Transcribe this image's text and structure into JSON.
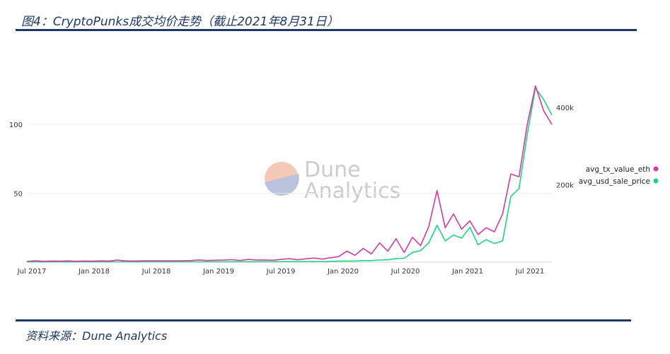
{
  "report": {
    "title": "图4：CryptoPunks成交均价走势（截止2021年8月31日）",
    "source": "资料来源：Dune Analytics"
  },
  "watermark": {
    "line1": "Dune",
    "line2": "Analytics"
  },
  "colors": {
    "eth": "#d63aa2",
    "usd": "#1ed680",
    "accent": "#1f3864"
  },
  "chart_data": {
    "type": "line",
    "x": [
      "2017-06",
      "2017-07",
      "2017-08",
      "2017-09",
      "2017-10",
      "2017-11",
      "2017-12",
      "2018-01",
      "2018-02",
      "2018-03",
      "2018-04",
      "2018-05",
      "2018-06",
      "2018-07",
      "2018-08",
      "2018-09",
      "2018-10",
      "2018-11",
      "2018-12",
      "2019-01",
      "2019-02",
      "2019-03",
      "2019-04",
      "2019-05",
      "2019-06",
      "2019-07",
      "2019-08",
      "2019-09",
      "2019-10",
      "2019-11",
      "2019-12",
      "2020-01",
      "2020-02",
      "2020-03",
      "2020-04",
      "2020-05",
      "2020-06",
      "2020-07",
      "2020-08",
      "2020-08b",
      "2020-09",
      "2020-09b",
      "2020-10",
      "2020-10b",
      "2020-11",
      "2020-11b",
      "2020-12",
      "2020-12b",
      "2021-01",
      "2021-01b",
      "2021-02",
      "2021-02b",
      "2021-03",
      "2021-03b",
      "2021-04",
      "2021-04b",
      "2021-05",
      "2021-05b",
      "2021-06",
      "2021-06b",
      "2021-07",
      "2021-07b",
      "2021-08",
      "2021-08b",
      "2021-08c"
    ],
    "x_tick_labels": [
      "Jul 2017",
      "Jan 2018",
      "Jul 2018",
      "Jan 2019",
      "Jul 2019",
      "Jan 2020",
      "Jul 2020",
      "Jan 2021",
      "Jul 2021"
    ],
    "y_left_ticks": [
      "50",
      "100"
    ],
    "y_right_ticks": [
      "200k",
      "400k"
    ],
    "y_left_range": [
      0,
      135
    ],
    "y_right_range": [
      0,
      480000
    ],
    "series": [
      {
        "name": "avg_tx_value_eth",
        "axis": "left",
        "values": [
          0.5,
          1,
          0.6,
          0.8,
          0.7,
          0.9,
          0.6,
          0.8,
          0.7,
          0.9,
          0.8,
          1.5,
          0.9,
          0.8,
          0.9,
          1,
          1,
          0.9,
          1,
          1,
          1.2,
          1.6,
          1.2,
          1.4,
          1.5,
          1.8,
          1.2,
          2,
          1.5,
          1.6,
          1.4,
          2,
          2.5,
          1.7,
          2.4,
          3,
          2.2,
          3.2,
          4,
          8,
          5,
          10,
          6,
          14,
          8,
          17,
          7,
          18,
          12,
          26,
          52,
          25,
          35,
          24,
          30,
          20,
          25,
          22,
          35,
          64,
          62,
          100,
          128,
          110,
          100
        ]
      },
      {
        "name": "avg_usd_sale_price",
        "axis": "right",
        "values": [
          800,
          900,
          700,
          800,
          750,
          800,
          700,
          900,
          800,
          850,
          800,
          900,
          850,
          800,
          850,
          900,
          900,
          850,
          900,
          950,
          900,
          1000,
          950,
          1000,
          1000,
          1100,
          1000,
          1200,
          1100,
          1200,
          1100,
          1300,
          1500,
          1200,
          1400,
          1600,
          1500,
          2000,
          2500,
          3000,
          3000,
          4000,
          4000,
          5500,
          6000,
          9000,
          10000,
          25000,
          30000,
          50000,
          95000,
          55000,
          70000,
          62000,
          90000,
          45000,
          58000,
          48000,
          55000,
          170000,
          190000,
          330000,
          450000,
          420000,
          380000
        ]
      }
    ],
    "legend_position": "right",
    "grid": "horizontal"
  }
}
